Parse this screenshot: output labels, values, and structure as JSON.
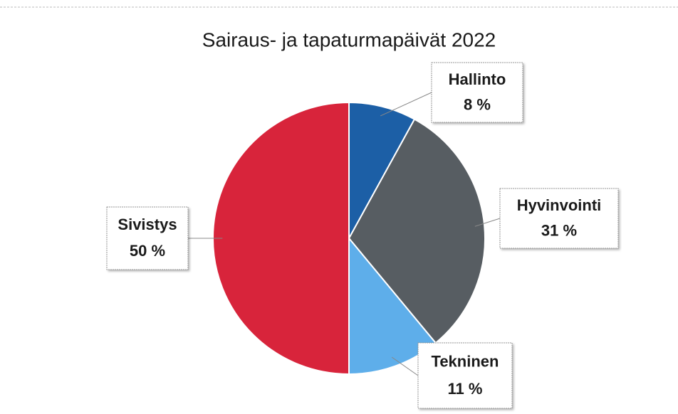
{
  "chart_data": {
    "type": "pie",
    "title": "Sairaus- ja tapaturmapäivät 2022",
    "categories": [
      "Hallinto",
      "Hyvinvointi",
      "Tekninen",
      "Sivistys"
    ],
    "values": [
      8,
      31,
      11,
      50
    ],
    "value_labels": [
      "8 %",
      "31 %",
      "11 %",
      "50 %"
    ],
    "colors": [
      "#1c5fa6",
      "#575d62",
      "#5eaeea",
      "#d8243b"
    ]
  }
}
